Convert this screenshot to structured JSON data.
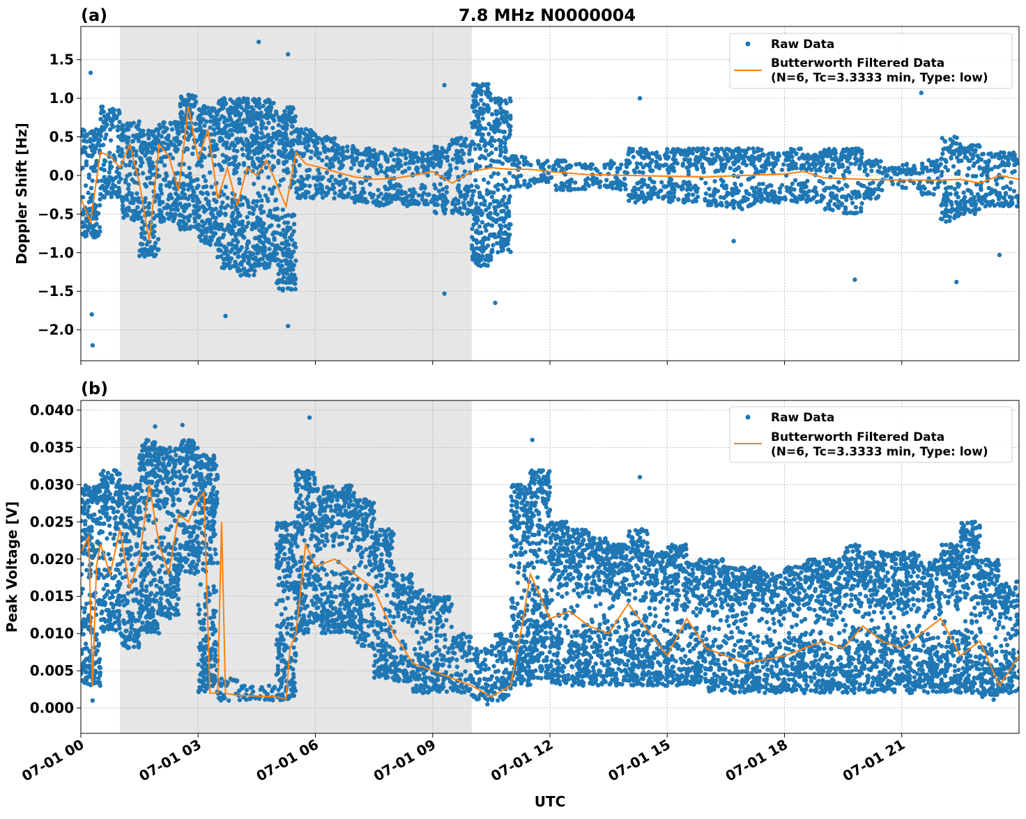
{
  "title": "7.8 MHz N0000004",
  "colors": {
    "raw": "#1f77b4",
    "filtered": "#ff7f0e",
    "shade": "#e6e6e6",
    "grid": "#b0b0b0"
  },
  "legend": {
    "raw_label": "Raw Data",
    "filtered_label_line1": "Butterworth Filtered Data",
    "filtered_label_line2": "(N=6, Tc=3.3333 min, Type: low)",
    "placement": "top-right"
  },
  "chart_data": [
    {
      "type": "scatter",
      "panel_label": "(a)",
      "ylabel": "Doppler Shift [Hz]",
      "xlabel": "",
      "xlim_hours": [
        0,
        24
      ],
      "ylim": [
        -2.4,
        1.93
      ],
      "grid": true,
      "shaded_interval_hours": [
        1,
        10
      ],
      "x_ticks": [
        "07-01 00",
        "07-01 03",
        "07-01 06",
        "07-01 09",
        "07-01 12",
        "07-01 15",
        "07-01 18",
        "07-01 21"
      ],
      "y_ticks": [
        1.5,
        1.0,
        0.5,
        0.0,
        -0.5,
        -1.0,
        -1.5,
        -2.0
      ],
      "y_tick_labels": [
        "1.5",
        "1.0",
        "0.5",
        "0.0",
        "−0.5",
        "−1.0",
        "−1.5",
        "−2.0"
      ],
      "raw_bin_hours": 0.5,
      "raw_ranges": [
        [
          -0.8,
          0.6
        ],
        [
          -0.3,
          0.9
        ],
        [
          -0.6,
          0.7
        ],
        [
          -1.05,
          0.6
        ],
        [
          -0.6,
          0.7
        ],
        [
          -0.7,
          1.05
        ],
        [
          -0.9,
          0.9
        ],
        [
          -1.2,
          1.0
        ],
        [
          -1.3,
          1.0
        ],
        [
          -1.2,
          1.0
        ],
        [
          -1.5,
          0.9
        ],
        [
          -0.3,
          0.6
        ],
        [
          -0.3,
          0.5
        ],
        [
          -0.3,
          0.4
        ],
        [
          -0.35,
          0.35
        ],
        [
          -0.4,
          0.3
        ],
        [
          -0.4,
          0.35
        ],
        [
          -0.4,
          0.3
        ],
        [
          -0.5,
          0.4
        ],
        [
          -0.5,
          0.5
        ],
        [
          -1.2,
          1.2
        ],
        [
          -1.0,
          1.0
        ],
        [
          -0.15,
          0.25
        ],
        [
          -0.1,
          0.2
        ],
        [
          -0.2,
          0.2
        ],
        [
          -0.2,
          0.15
        ],
        [
          -0.15,
          0.15
        ],
        [
          -0.2,
          0.2
        ],
        [
          -0.35,
          0.35
        ],
        [
          -0.3,
          0.3
        ],
        [
          -0.35,
          0.35
        ],
        [
          -0.35,
          0.35
        ],
        [
          -0.4,
          0.35
        ],
        [
          -0.45,
          0.35
        ],
        [
          -0.4,
          0.35
        ],
        [
          -0.35,
          0.3
        ],
        [
          -0.35,
          0.35
        ],
        [
          -0.35,
          0.3
        ],
        [
          -0.45,
          0.35
        ],
        [
          -0.5,
          0.35
        ],
        [
          -0.3,
          0.2
        ],
        [
          -0.15,
          0.1
        ],
        [
          -0.2,
          0.15
        ],
        [
          -0.25,
          0.2
        ],
        [
          -0.6,
          0.5
        ],
        [
          -0.5,
          0.4
        ],
        [
          -0.4,
          0.3
        ],
        [
          -0.4,
          0.3
        ]
      ],
      "raw_outliers": [
        [
          0.25,
          1.33
        ],
        [
          0.3,
          -2.2
        ],
        [
          0.28,
          -1.8
        ],
        [
          4.55,
          1.73
        ],
        [
          5.3,
          1.57
        ],
        [
          5.3,
          -1.95
        ],
        [
          3.7,
          -1.82
        ],
        [
          9.3,
          -1.53
        ],
        [
          9.3,
          1.17
        ],
        [
          10.6,
          -1.65
        ],
        [
          14.3,
          1.0
        ],
        [
          19.8,
          -1.35
        ],
        [
          22.4,
          -1.38
        ],
        [
          21.5,
          1.07
        ],
        [
          23.5,
          -1.03
        ],
        [
          16.7,
          -0.85
        ]
      ],
      "filtered_x_hours": [
        0,
        0.25,
        0.5,
        0.75,
        1,
        1.25,
        1.5,
        1.75,
        2,
        2.25,
        2.5,
        2.75,
        3,
        3.25,
        3.5,
        3.75,
        4,
        4.25,
        4.5,
        4.75,
        5,
        5.25,
        5.5,
        5.75,
        6,
        6.5,
        7,
        7.5,
        8,
        8.5,
        9,
        9.5,
        10,
        10.5,
        11,
        11.5,
        12,
        13,
        14,
        15,
        16,
        17,
        18,
        18.5,
        19,
        20,
        21,
        22,
        22.5,
        23,
        23.5,
        24
      ],
      "filtered_values": [
        -0.3,
        -0.6,
        0.3,
        0.25,
        0.1,
        0.4,
        -0.1,
        -0.85,
        0.4,
        0.25,
        -0.2,
        0.9,
        0.2,
        0.6,
        -0.3,
        0.1,
        -0.4,
        0.1,
        0.0,
        0.2,
        -0.1,
        -0.4,
        0.3,
        0.15,
        0.12,
        0.05,
        -0.02,
        -0.05,
        -0.04,
        0.0,
        0.05,
        -0.1,
        0.05,
        0.1,
        0.08,
        0.08,
        0.05,
        0.01,
        0.0,
        -0.01,
        -0.02,
        0.0,
        0.02,
        0.05,
        -0.03,
        -0.05,
        -0.06,
        -0.06,
        -0.05,
        -0.1,
        0.0,
        -0.05
      ]
    },
    {
      "type": "scatter",
      "panel_label": "(b)",
      "ylabel": "Peak Voltage [V]",
      "xlabel": "UTC",
      "xlim_hours": [
        0,
        24
      ],
      "ylim": [
        -0.0034,
        0.0413
      ],
      "grid": true,
      "shaded_interval_hours": [
        1,
        10
      ],
      "x_ticks": [
        "07-01 00",
        "07-01 03",
        "07-01 06",
        "07-01 09",
        "07-01 12",
        "07-01 15",
        "07-01 18",
        "07-01 21"
      ],
      "y_ticks": [
        0.04,
        0.035,
        0.03,
        0.025,
        0.02,
        0.015,
        0.01,
        0.005,
        0.0
      ],
      "y_tick_labels": [
        "0.040",
        "0.035",
        "0.030",
        "0.025",
        "0.020",
        "0.015",
        "0.010",
        "0.005",
        "0.000"
      ],
      "raw_bin_hours": 0.5,
      "raw_ranges": [
        [
          0.003,
          0.03
        ],
        [
          0.01,
          0.032
        ],
        [
          0.008,
          0.03
        ],
        [
          0.01,
          0.036
        ],
        [
          0.012,
          0.035
        ],
        [
          0.018,
          0.036
        ],
        [
          0.002,
          0.034
        ],
        [
          0.001,
          0.004
        ],
        [
          0.001,
          0.003
        ],
        [
          0.001,
          0.003
        ],
        [
          0.001,
          0.025
        ],
        [
          0.01,
          0.032
        ],
        [
          0.01,
          0.03
        ],
        [
          0.01,
          0.03
        ],
        [
          0.008,
          0.028
        ],
        [
          0.004,
          0.024
        ],
        [
          0.003,
          0.018
        ],
        [
          0.002,
          0.016
        ],
        [
          0.002,
          0.015
        ],
        [
          0.002,
          0.01
        ],
        [
          0.001,
          0.008
        ],
        [
          0.001,
          0.01
        ],
        [
          0.003,
          0.03
        ],
        [
          0.004,
          0.032
        ],
        [
          0.003,
          0.025
        ],
        [
          0.003,
          0.024
        ],
        [
          0.003,
          0.023
        ],
        [
          0.003,
          0.022
        ],
        [
          0.003,
          0.024
        ],
        [
          0.003,
          0.021
        ],
        [
          0.003,
          0.022
        ],
        [
          0.003,
          0.02
        ],
        [
          0.002,
          0.02
        ],
        [
          0.002,
          0.019
        ],
        [
          0.002,
          0.019
        ],
        [
          0.002,
          0.018
        ],
        [
          0.002,
          0.019
        ],
        [
          0.002,
          0.02
        ],
        [
          0.002,
          0.02
        ],
        [
          0.002,
          0.022
        ],
        [
          0.002,
          0.021
        ],
        [
          0.002,
          0.021
        ],
        [
          0.002,
          0.021
        ],
        [
          0.002,
          0.02
        ],
        [
          0.002,
          0.022
        ],
        [
          0.002,
          0.025
        ],
        [
          0.001,
          0.02
        ],
        [
          0.002,
          0.017
        ]
      ],
      "raw_outliers": [
        [
          5.85,
          0.039
        ],
        [
          11.55,
          0.036
        ],
        [
          14.3,
          0.031
        ],
        [
          1.9,
          0.0378
        ],
        [
          2.6,
          0.038
        ],
        [
          0.3,
          0.001
        ],
        [
          10.4,
          0.0005
        ]
      ],
      "filtered_x_hours": [
        0,
        0.2,
        0.3,
        0.4,
        0.5,
        0.75,
        1,
        1.25,
        1.5,
        1.75,
        2,
        2.25,
        2.5,
        2.75,
        3,
        3.15,
        3.3,
        3.5,
        3.6,
        3.7,
        4,
        4.5,
        5,
        5.25,
        5.35,
        5.5,
        5.75,
        6,
        6.5,
        7,
        7.5,
        8,
        8.5,
        9,
        9.5,
        10,
        10.5,
        11,
        11.25,
        11.5,
        12,
        12.5,
        13,
        13.5,
        14,
        15,
        15.5,
        16,
        17,
        18,
        19,
        19.5,
        20,
        20.5,
        21,
        21.5,
        22,
        22.5,
        23,
        23.5,
        24
      ],
      "filtered_values": [
        0.021,
        0.023,
        0.003,
        0.019,
        0.022,
        0.018,
        0.024,
        0.016,
        0.02,
        0.03,
        0.022,
        0.018,
        0.026,
        0.025,
        0.028,
        0.029,
        0.002,
        0.002,
        0.025,
        0.002,
        0.0017,
        0.0016,
        0.0015,
        0.0012,
        0.008,
        0.01,
        0.022,
        0.019,
        0.02,
        0.018,
        0.016,
        0.01,
        0.006,
        0.005,
        0.004,
        0.003,
        0.0015,
        0.003,
        0.01,
        0.018,
        0.012,
        0.013,
        0.011,
        0.01,
        0.014,
        0.007,
        0.012,
        0.008,
        0.006,
        0.007,
        0.009,
        0.008,
        0.011,
        0.009,
        0.008,
        0.01,
        0.012,
        0.007,
        0.009,
        0.003,
        0.007
      ]
    }
  ]
}
